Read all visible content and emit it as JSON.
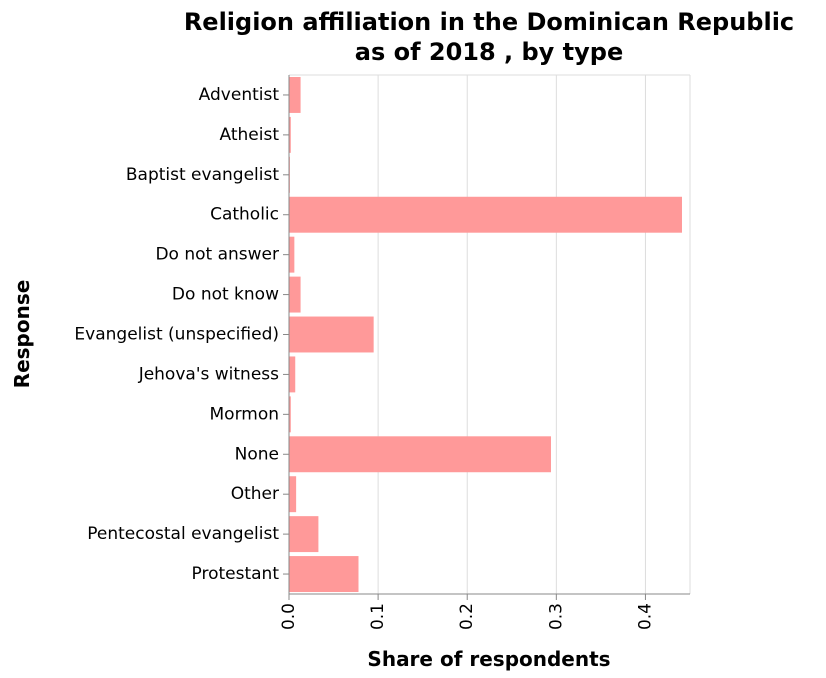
{
  "chart_data": {
    "type": "bar",
    "orientation": "horizontal",
    "title": "Religion affiliation in the Dominican Republic as of 2018 , by type",
    "title_lines": [
      "Religion affiliation in the Dominican Republic",
      "as of 2018 , by type"
    ],
    "xlabel": "Share of respondents",
    "ylabel": "Response",
    "categories": [
      "Adventist",
      "Atheist",
      "Baptist evangelist",
      "Catholic",
      "Do not answer",
      "Do not know",
      "Evangelist (unspecified)",
      "Jehova's witness",
      "Mormon",
      "None",
      "Other",
      "Pentecostal evangelist",
      "Protestant"
    ],
    "values": [
      0.013,
      0.002,
      0.001,
      0.441,
      0.006,
      0.013,
      0.095,
      0.007,
      0.002,
      0.294,
      0.008,
      0.033,
      0.078
    ],
    "xlim": [
      0,
      0.45
    ],
    "xticks": [
      "0.0",
      "0.1",
      "0.2",
      "0.3",
      "0.4"
    ],
    "xtick_values": [
      0,
      0.1,
      0.2,
      0.3,
      0.4
    ],
    "grid": true,
    "bar_color": "#ff9999"
  }
}
